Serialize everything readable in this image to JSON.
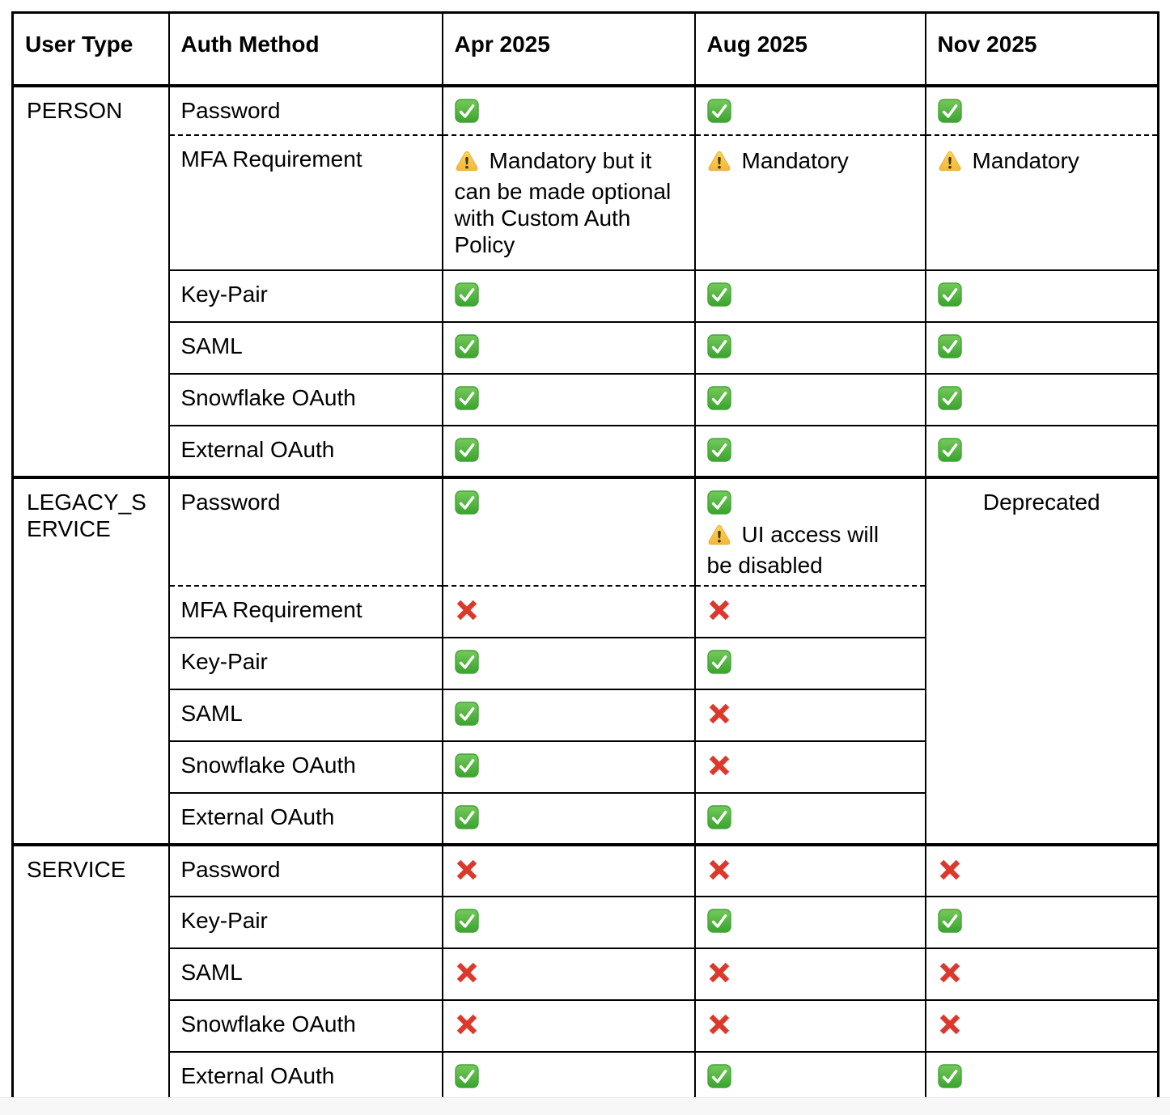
{
  "colors": {
    "border_black": "#000000",
    "check_green_top": "#74ca5a",
    "check_green_bottom": "#3ba32f",
    "check_border": "#44a338",
    "cross_red": "#dc392d",
    "warning_yellow_top": "#fdd64f",
    "warning_yellow_bottom": "#f3b63d",
    "warning_border": "#e7ae39",
    "warning_mark": "#42370b",
    "page_bottom_strip": "#f7f7f8"
  },
  "icons": {
    "check": "check-icon",
    "cross": "cross-icon",
    "warning": "warning-icon"
  },
  "table": {
    "headers": [
      "User Type",
      "Auth Method",
      "Apr 2025",
      "Aug 2025",
      "Nov 2025"
    ],
    "sections": [
      {
        "user_type": "PERSON",
        "rows": [
          {
            "auth_method": "Password",
            "cells": {
              "apr": {
                "type": "check"
              },
              "aug": {
                "type": "check"
              },
              "nov": {
                "type": "check"
              }
            }
          },
          {
            "auth_method": "MFA Requirement",
            "dashed_divider_above": true,
            "cells": {
              "apr": {
                "type": "warning_text",
                "text": "Mandatory but it can be made optional with Custom Auth Policy"
              },
              "aug": {
                "type": "warning_text",
                "text": "Mandatory"
              },
              "nov": {
                "type": "warning_text",
                "text": "Mandatory"
              }
            }
          },
          {
            "auth_method": "Key-Pair",
            "cells": {
              "apr": {
                "type": "check"
              },
              "aug": {
                "type": "check"
              },
              "nov": {
                "type": "check"
              }
            }
          },
          {
            "auth_method": "SAML",
            "cells": {
              "apr": {
                "type": "check"
              },
              "aug": {
                "type": "check"
              },
              "nov": {
                "type": "check"
              }
            }
          },
          {
            "auth_method": "Snowflake OAuth",
            "cells": {
              "apr": {
                "type": "check"
              },
              "aug": {
                "type": "check"
              },
              "nov": {
                "type": "check"
              }
            }
          },
          {
            "auth_method": "External OAuth",
            "cells": {
              "apr": {
                "type": "check"
              },
              "aug": {
                "type": "check"
              },
              "nov": {
                "type": "check"
              }
            }
          }
        ]
      },
      {
        "user_type": "LEGACY_SERVICE",
        "rows": [
          {
            "auth_method": "Password",
            "cells": {
              "apr": {
                "type": "check"
              },
              "aug": {
                "type": "check_warning_text",
                "text": "UI access will be disabled"
              },
              "nov": {
                "type": "text",
                "text": "Deprecated",
                "rowspan": 6
              }
            }
          },
          {
            "auth_method": "MFA Requirement",
            "dashed_divider_above": true,
            "cells": {
              "apr": {
                "type": "cross"
              },
              "aug": {
                "type": "cross"
              }
            }
          },
          {
            "auth_method": "Key-Pair",
            "cells": {
              "apr": {
                "type": "check"
              },
              "aug": {
                "type": "check"
              }
            }
          },
          {
            "auth_method": "SAML",
            "cells": {
              "apr": {
                "type": "check"
              },
              "aug": {
                "type": "cross"
              }
            }
          },
          {
            "auth_method": "Snowflake OAuth",
            "cells": {
              "apr": {
                "type": "check"
              },
              "aug": {
                "type": "cross"
              }
            }
          },
          {
            "auth_method": "External OAuth",
            "cells": {
              "apr": {
                "type": "check"
              },
              "aug": {
                "type": "check"
              }
            }
          }
        ]
      },
      {
        "user_type": "SERVICE",
        "rows": [
          {
            "auth_method": "Password",
            "cells": {
              "apr": {
                "type": "cross"
              },
              "aug": {
                "type": "cross"
              },
              "nov": {
                "type": "cross"
              }
            }
          },
          {
            "auth_method": "Key-Pair",
            "cells": {
              "apr": {
                "type": "check"
              },
              "aug": {
                "type": "check"
              },
              "nov": {
                "type": "check"
              }
            }
          },
          {
            "auth_method": "SAML",
            "cells": {
              "apr": {
                "type": "cross"
              },
              "aug": {
                "type": "cross"
              },
              "nov": {
                "type": "cross"
              }
            }
          },
          {
            "auth_method": "Snowflake OAuth",
            "cells": {
              "apr": {
                "type": "cross"
              },
              "aug": {
                "type": "cross"
              },
              "nov": {
                "type": "cross"
              }
            }
          },
          {
            "auth_method": "External OAuth",
            "cells": {
              "apr": {
                "type": "check"
              },
              "aug": {
                "type": "check"
              },
              "nov": {
                "type": "check"
              }
            }
          }
        ]
      }
    ]
  }
}
